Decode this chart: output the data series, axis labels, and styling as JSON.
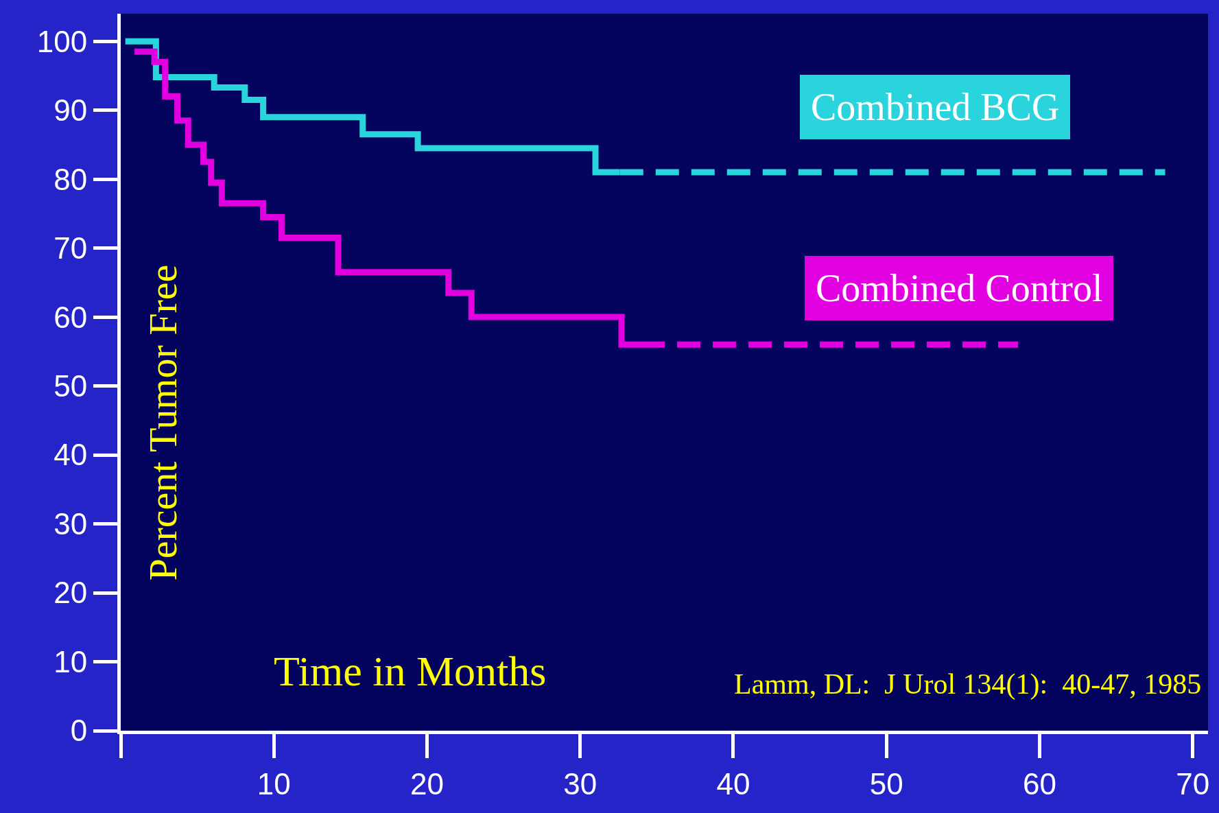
{
  "chart_data": {
    "type": "step",
    "xlabel": "Time in Months",
    "ylabel": "Percent Tumor Free",
    "annotations": [
      "Lamm, DL:  J Urol 134(1):  40-47, 1985"
    ],
    "xlim": [
      0,
      71
    ],
    "ylim": [
      0,
      104
    ],
    "xticks": [
      {
        "value": 0,
        "label": null
      },
      10,
      20,
      30,
      40,
      50,
      60,
      70
    ],
    "yticks": [
      0,
      10,
      20,
      30,
      40,
      50,
      60,
      70,
      80,
      90,
      100
    ],
    "grid": false,
    "legend": false,
    "marker": "none",
    "series": [
      {
        "name": "Combined BCG",
        "color": "#2ad4dc",
        "line_style": "solid",
        "x": [
          0.3,
          2.3,
          6.1,
          8.1,
          9.3,
          15.8,
          19.4,
          31.0,
          32.6
        ],
        "values": [
          100,
          94.8,
          93.3,
          91.5,
          89,
          86.5,
          84.5,
          81,
          81
        ]
      },
      {
        "color": "#2ad4dc",
        "line_style": "dashed",
        "x": [
          32.6,
          68.2
        ],
        "values": [
          81,
          81
        ]
      },
      {
        "name": "Combined Control",
        "color": "#e000e0",
        "line_style": "solid",
        "x": [
          0.9,
          2.2,
          2.9,
          3.7,
          4.4,
          5.4,
          5.9,
          6.6,
          9.3,
          10.5,
          14.2,
          21.4,
          22.9,
          32.7,
          34.0
        ],
        "values": [
          98.5,
          97,
          92,
          88.5,
          85,
          82.5,
          79.5,
          76.5,
          74.5,
          71.5,
          66.5,
          63.5,
          60,
          56,
          56
        ]
      },
      {
        "color": "#e000e0",
        "line_style": "dashed",
        "x": [
          34.0,
          58.6
        ],
        "values": [
          56,
          56
        ]
      }
    ]
  }
}
